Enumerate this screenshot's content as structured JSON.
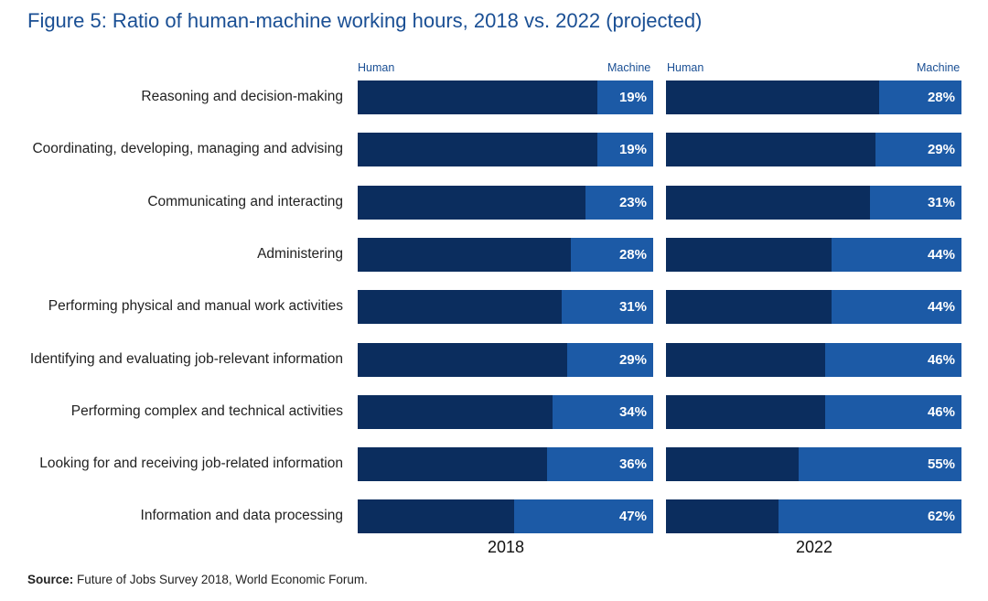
{
  "title": "Figure 5: Ratio of human-machine working hours, 2018 vs. 2022 (projected)",
  "colors": {
    "title": "#1a4f94",
    "human": "#0b2d5e",
    "machine": "#1c5aa6"
  },
  "source": {
    "label": "Source:",
    "text": " Future of Jobs Survey 2018, World Economic Forum."
  },
  "chart_data": [
    {
      "type": "bar",
      "orientation": "horizontal",
      "stacked": true,
      "title": "2018",
      "series_labels": {
        "human": "Human",
        "machine": "Machine"
      },
      "categories": [
        "Reasoning and decision-making",
        "Coordinating, developing, managing and advising",
        "Communicating and interacting",
        "Administering",
        "Performing physical and manual work activities",
        "Identifying and evaluating job-relevant information",
        "Performing complex and technical activities",
        "Looking for and receiving job-related information",
        "Information and data processing"
      ],
      "series": [
        {
          "name": "Human",
          "values": [
            81,
            81,
            77,
            72,
            69,
            71,
            66,
            64,
            53
          ]
        },
        {
          "name": "Machine",
          "values": [
            19,
            19,
            23,
            28,
            31,
            29,
            34,
            36,
            47
          ]
        }
      ],
      "labels": [
        "19%",
        "19%",
        "23%",
        "28%",
        "31%",
        "29%",
        "34%",
        "36%",
        "47%"
      ],
      "xlim": [
        0,
        100
      ]
    },
    {
      "type": "bar",
      "orientation": "horizontal",
      "stacked": true,
      "title": "2022",
      "series_labels": {
        "human": "Human",
        "machine": "Machine"
      },
      "categories": [
        "Reasoning and decision-making",
        "Coordinating, developing, managing and advising",
        "Communicating and interacting",
        "Administering",
        "Performing physical and manual work activities",
        "Identifying and evaluating job-relevant information",
        "Performing complex and technical activities",
        "Looking for and receiving job-related information",
        "Information and data processing"
      ],
      "series": [
        {
          "name": "Human",
          "values": [
            72,
            71,
            69,
            56,
            56,
            54,
            54,
            45,
            38
          ]
        },
        {
          "name": "Machine",
          "values": [
            28,
            29,
            31,
            44,
            44,
            46,
            46,
            55,
            62
          ]
        }
      ],
      "labels": [
        "28%",
        "29%",
        "31%",
        "44%",
        "44%",
        "46%",
        "46%",
        "55%",
        "62%"
      ],
      "xlim": [
        0,
        100
      ]
    }
  ]
}
